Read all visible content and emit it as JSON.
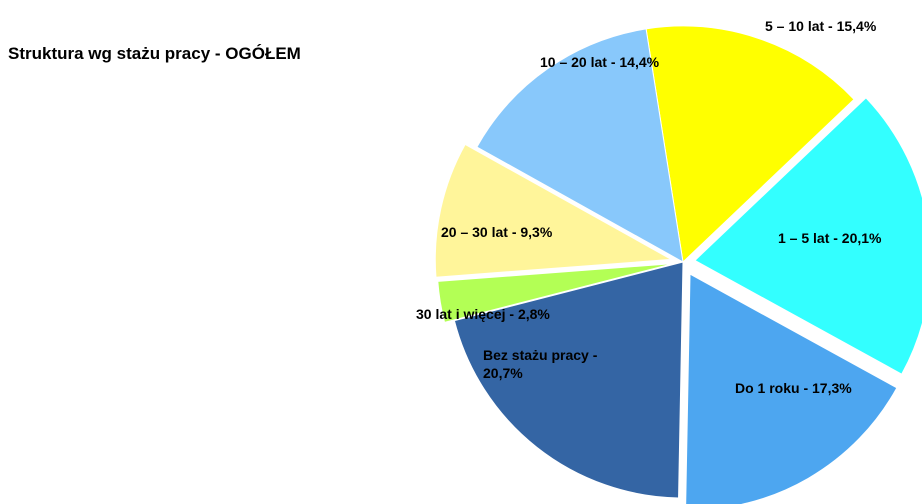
{
  "chart_data": {
    "type": "pie",
    "title": "Struktura wg stażu pracy - OGÓŁEM",
    "values": [
      15.4,
      20.1,
      17.3,
      20.7,
      2.8,
      9.3,
      14.4
    ],
    "value_labels": [
      "5 – 10 lat - 15,4%",
      "1 – 5 lat - 20,1%",
      "Do 1 roku - 17,3%",
      "Bez stażu pracy - 20,7%",
      "30 lat i więcej - 2,8%",
      "20 – 30 lat - 9,3%",
      "10 – 20 lat - 14,4%"
    ],
    "colors": [
      "#ffff00",
      "#33ffff",
      "#4da6f0",
      "#3465a4",
      "#b3ff55",
      "#fff59a",
      "#88c8fb"
    ]
  }
}
